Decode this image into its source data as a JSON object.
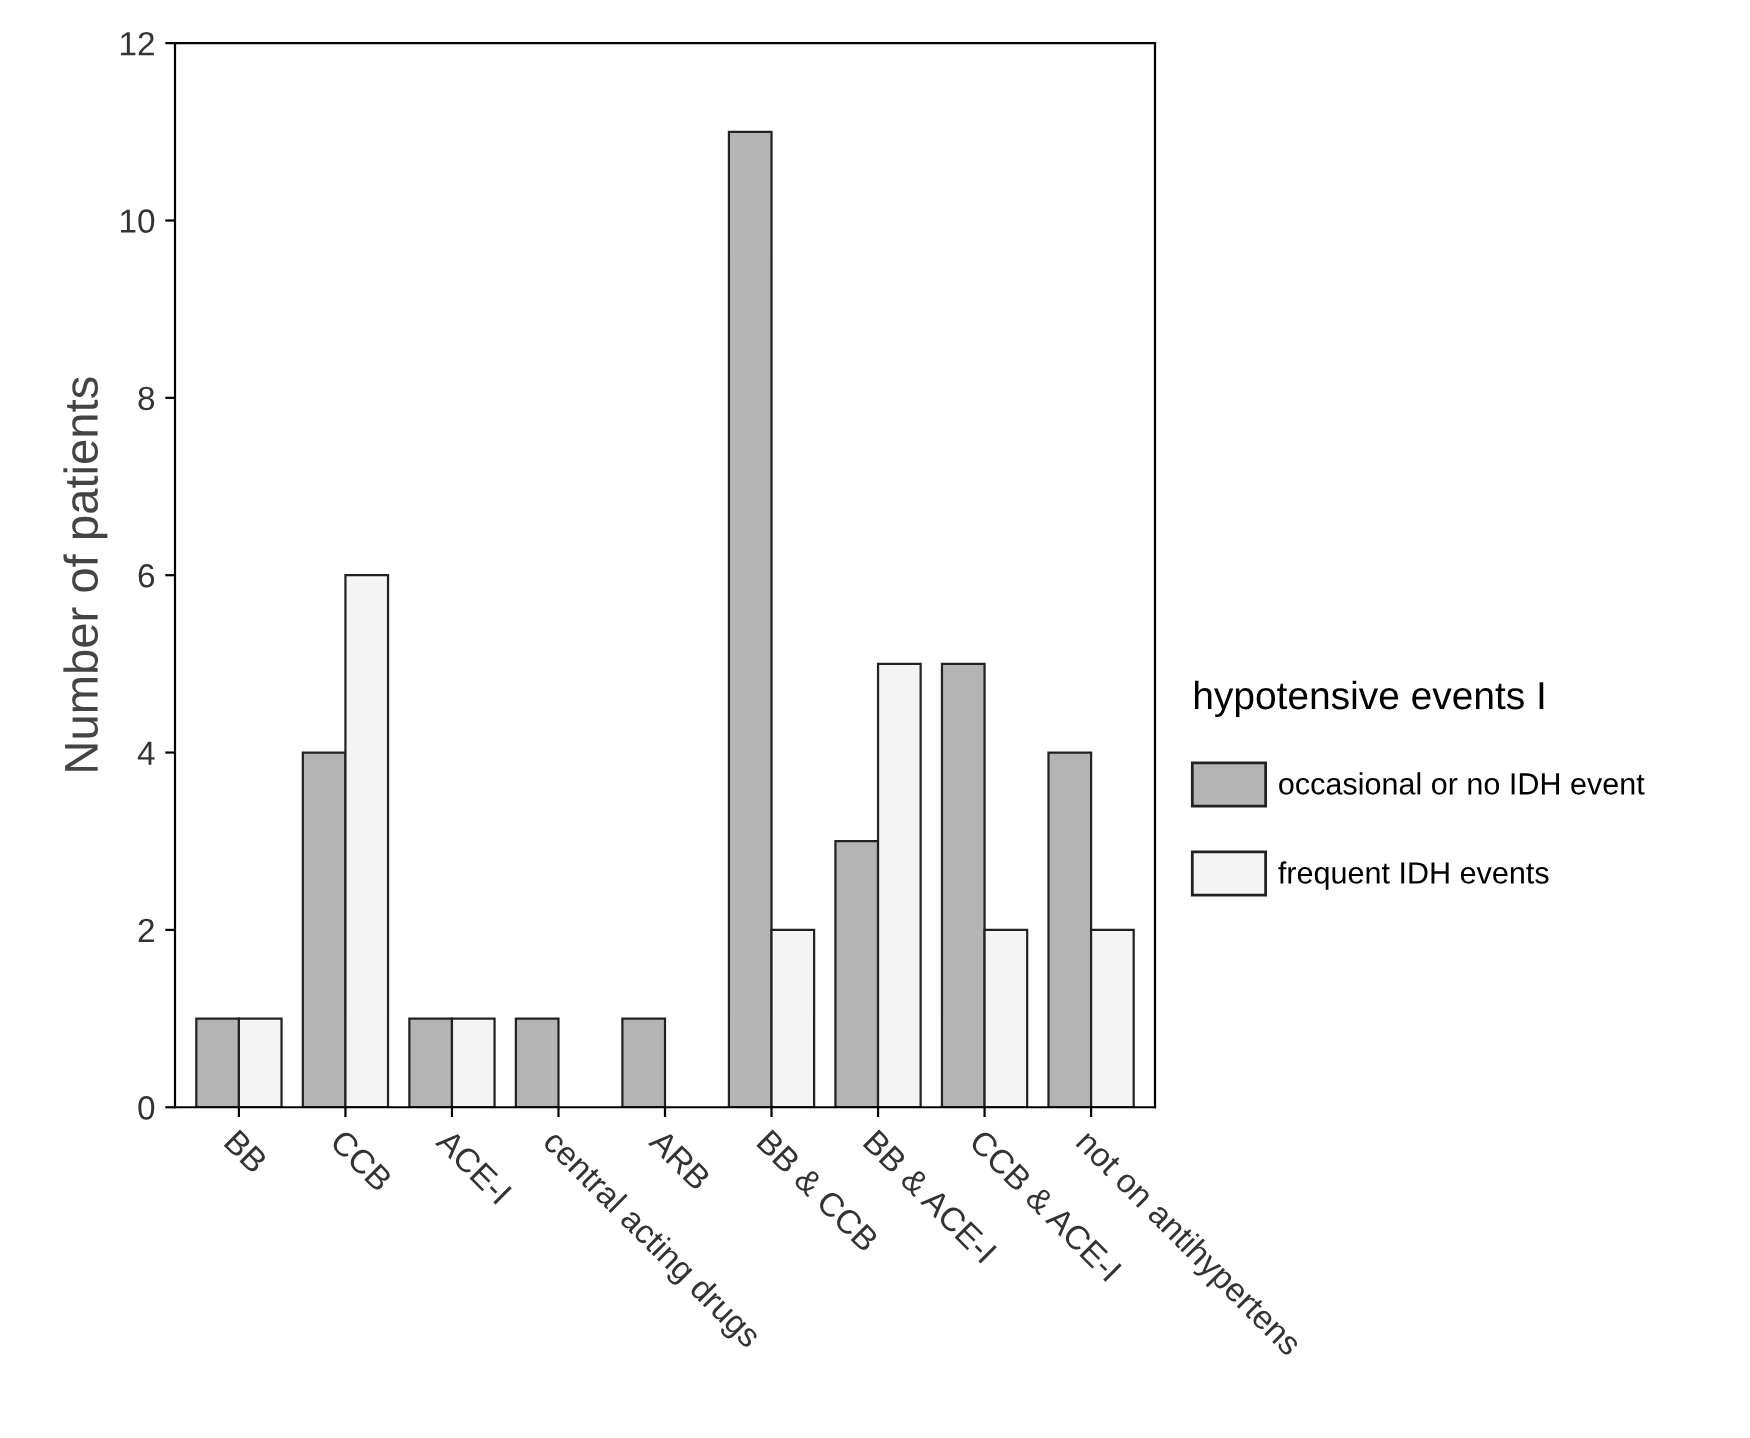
{
  "chart_data": {
    "type": "bar",
    "ylabel": "Number of patients",
    "legend_title": "hypotensive events I",
    "categories": [
      "BB",
      "CCB",
      "ACE-I",
      "central acting drugs",
      "ARB",
      "BB & CCB",
      "BB & ACE-I",
      "CCB & ACE-I",
      "not on antihypertens"
    ],
    "series": [
      {
        "name": "occasional or no IDH event",
        "color": "#b4b4b4",
        "values": [
          1,
          4,
          1,
          1,
          1,
          11,
          3,
          5,
          4
        ]
      },
      {
        "name": "frequent IDH events",
        "color": "#f4f4f4",
        "values": [
          1,
          6,
          1,
          null,
          null,
          2,
          5,
          2,
          2
        ]
      }
    ],
    "ylim": [
      0,
      12
    ],
    "yticks": [
      0,
      2,
      4,
      6,
      8,
      10,
      12
    ],
    "grid": false,
    "legend": "right"
  }
}
